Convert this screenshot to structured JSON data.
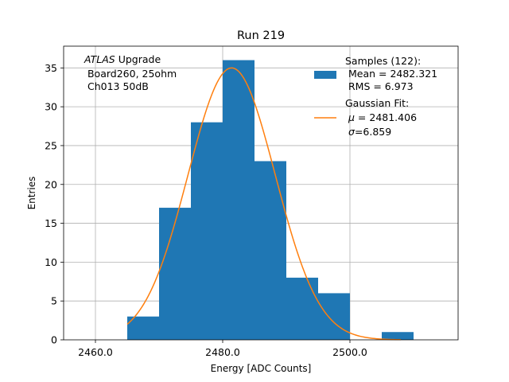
{
  "chart_data": {
    "type": "bar",
    "title": "Run 219",
    "xlabel": "Energy [ADC Counts]",
    "ylabel": "Entries",
    "xlim": [
      2455.0,
      2517.0
    ],
    "ylim": [
      0,
      37.8
    ],
    "grid": true,
    "x_ticks": [
      2460.0,
      2480.0,
      2500.0
    ],
    "x_tick_labels": [
      "2460.0",
      "2480.0",
      "2500.0"
    ],
    "y_ticks": [
      0,
      5,
      10,
      15,
      20,
      25,
      30,
      35
    ],
    "y_tick_labels": [
      "0",
      "5",
      "10",
      "15",
      "20",
      "25",
      "30",
      "35"
    ],
    "bins": [
      {
        "x0": 2465,
        "x1": 2470,
        "count": 3
      },
      {
        "x0": 2470,
        "x1": 2475,
        "count": 17
      },
      {
        "x0": 2475,
        "x1": 2480,
        "count": 28
      },
      {
        "x0": 2480,
        "x1": 2485,
        "count": 36
      },
      {
        "x0": 2485,
        "x1": 2490,
        "count": 23
      },
      {
        "x0": 2490,
        "x1": 2495,
        "count": 8
      },
      {
        "x0": 2495,
        "x1": 2500,
        "count": 6
      },
      {
        "x0": 2500,
        "x1": 2505,
        "count": 0
      },
      {
        "x0": 2505,
        "x1": 2510,
        "count": 1
      }
    ],
    "fit": {
      "type": "gaussian",
      "amplitude": 35.0,
      "mu": 2481.406,
      "sigma": 6.859,
      "x_range": [
        2465,
        2508
      ]
    },
    "annotation": {
      "experiment": "ATLAS",
      "line1_suffix": " Upgrade",
      "line2": " Board260, 25ohm",
      "line3": " Ch013 50dB"
    },
    "legend": {
      "placement": "top-right",
      "samples_title": "Samples (122):",
      "samples_mean": " Mean = 2482.321",
      "samples_rms": " RMS = 6.973",
      "fit_title": "Gaussian Fit:",
      "fit_mu": " = 2481.406",
      "fit_sigma": "=6.859"
    },
    "colors": {
      "bars": "#1f77b4",
      "fit": "#ff7f0e",
      "grid": "#b0b0b0"
    }
  }
}
